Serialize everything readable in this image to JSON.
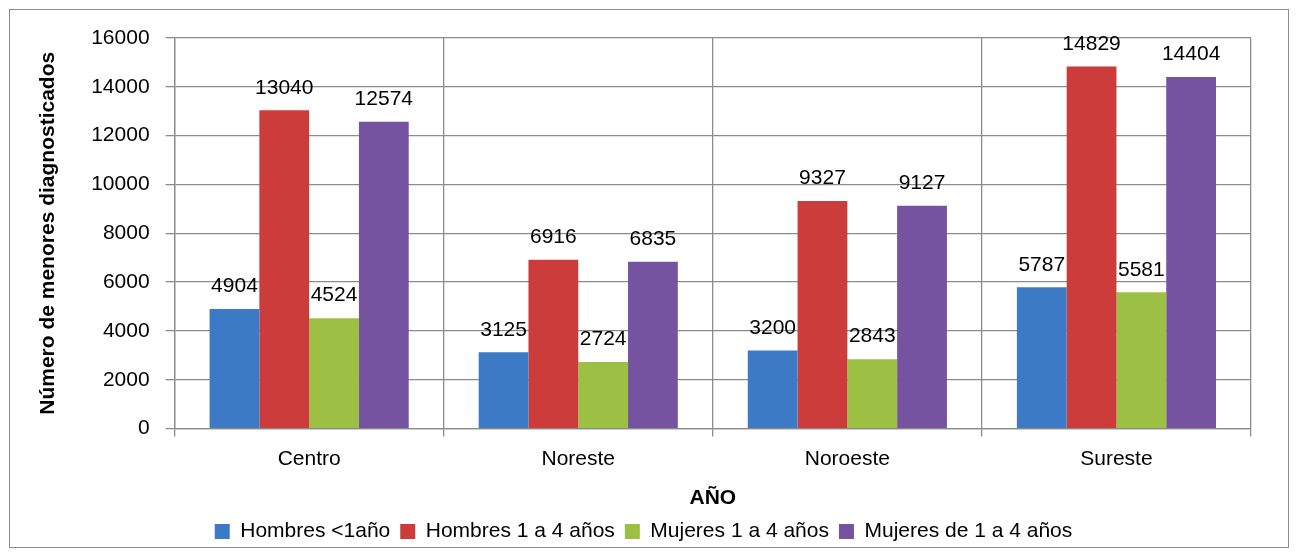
{
  "chart_data": {
    "type": "bar",
    "xlabel": "AÑO",
    "ylabel": "Número de menores diagnosticados",
    "categories": [
      "Centro",
      "Noreste",
      "Noroeste",
      "Sureste"
    ],
    "series": [
      {
        "name": "Hombres <1año",
        "color": "#3d7ac6",
        "values": [
          4904,
          3125,
          3200,
          5787
        ]
      },
      {
        "name": "Hombres 1 a 4 años",
        "color": "#cc3c3a",
        "values": [
          13040,
          6916,
          9327,
          14829
        ]
      },
      {
        "name": "Mujeres 1 a 4 años",
        "color": "#9cc043",
        "values": [
          4524,
          2724,
          2843,
          5581
        ]
      },
      {
        "name": "Mujeres de 1 a 4 años",
        "color": "#7553a0",
        "values": [
          12574,
          6835,
          9127,
          14404
        ]
      }
    ],
    "ylim": [
      0,
      16000
    ],
    "yticks": [
      0,
      2000,
      4000,
      6000,
      8000,
      10000,
      12000,
      14000,
      16000
    ],
    "grid": true,
    "legend": "bottom",
    "data_labels": true
  }
}
